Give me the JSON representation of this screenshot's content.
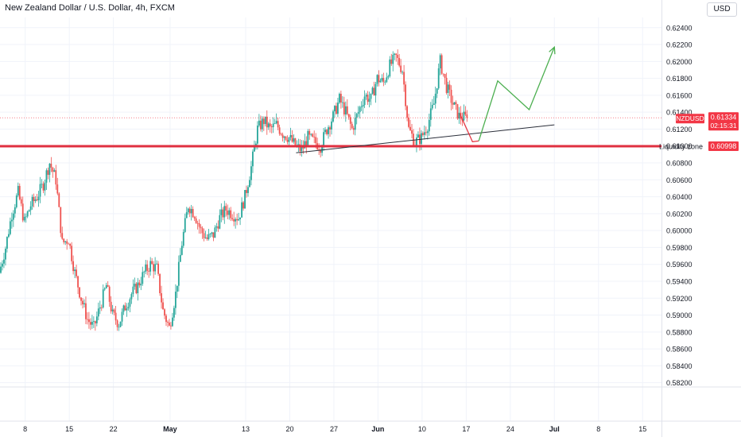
{
  "header": {
    "title": "New Zealand Dollar / U.S. Dollar, 4h, FXCM",
    "currency_label": "USD"
  },
  "colors": {
    "up": "#26a69a",
    "down": "#ef5350",
    "zone": "#e03040",
    "price_label_bg": "#f23645",
    "projection_green": "#4caf50",
    "projection_red": "#e53945",
    "trendline": "#2a2e39",
    "grid": "#f0f3fa",
    "axis_text": "#131722"
  },
  "chart_data": {
    "type": "candlestick",
    "symbol": "NZDUSD",
    "timeframe": "4h",
    "ylim": [
      0.5815,
      0.6252
    ],
    "y_ticks": [
      0.624,
      0.622,
      0.62,
      0.618,
      0.616,
      0.614,
      0.612,
      0.61,
      0.608,
      0.606,
      0.604,
      0.602,
      0.6,
      0.598,
      0.596,
      0.594,
      0.592,
      0.59,
      0.588,
      0.586,
      0.584,
      0.582
    ],
    "y_tick_labels": [
      "0.62400",
      "0.62200",
      "0.62000",
      "0.61800",
      "0.61600",
      "0.61400",
      "0.61200",
      "0.61000",
      "0.60800",
      "0.60600",
      "0.60400",
      "0.60200",
      "0.60000",
      "0.59800",
      "0.59600",
      "0.59400",
      "0.59200",
      "0.59000",
      "0.58800",
      "0.58600",
      "0.58400",
      "0.58200"
    ],
    "x_range": [
      "2024-04-04",
      "2024-07-18"
    ],
    "x_ticks": [
      {
        "date": "2024-04-08",
        "label": "8"
      },
      {
        "date": "2024-04-15",
        "label": "15"
      },
      {
        "date": "2024-04-22",
        "label": "22"
      },
      {
        "date": "2024-05-01",
        "label": "May"
      },
      {
        "date": "2024-05-13",
        "label": "13"
      },
      {
        "date": "2024-05-20",
        "label": "20"
      },
      {
        "date": "2024-05-27",
        "label": "27"
      },
      {
        "date": "2024-06-03",
        "label": "Jun"
      },
      {
        "date": "2024-06-10",
        "label": "10"
      },
      {
        "date": "2024-06-17",
        "label": "17"
      },
      {
        "date": "2024-06-24",
        "label": "24"
      },
      {
        "date": "2024-07-01",
        "label": "Jul"
      },
      {
        "date": "2024-07-08",
        "label": "8"
      },
      {
        "date": "2024-07-15",
        "label": "15"
      }
    ],
    "path": [
      [
        "2024-04-04",
        0.595
      ],
      [
        "2024-04-05",
        0.598
      ],
      [
        "2024-04-06",
        0.602
      ],
      [
        "2024-04-07",
        0.6045
      ],
      [
        "2024-04-08",
        0.601
      ],
      [
        "2024-04-09",
        0.603
      ],
      [
        "2024-04-10",
        0.604
      ],
      [
        "2024-04-11",
        0.6055
      ],
      [
        "2024-04-12",
        0.608
      ],
      [
        "2024-04-13",
        0.606
      ],
      [
        "2024-04-14",
        0.5985
      ],
      [
        "2024-04-15",
        0.599
      ],
      [
        "2024-04-16",
        0.595
      ],
      [
        "2024-04-17",
        0.592
      ],
      [
        "2024-04-18",
        0.5895
      ],
      [
        "2024-04-19",
        0.5885
      ],
      [
        "2024-04-20",
        0.591
      ],
      [
        "2024-04-21",
        0.5935
      ],
      [
        "2024-04-22",
        0.59
      ],
      [
        "2024-04-23",
        0.589
      ],
      [
        "2024-04-24",
        0.591
      ],
      [
        "2024-04-25",
        0.5925
      ],
      [
        "2024-04-26",
        0.5935
      ],
      [
        "2024-04-27",
        0.595
      ],
      [
        "2024-04-28",
        0.596
      ],
      [
        "2024-04-29",
        0.5955
      ],
      [
        "2024-04-30",
        0.5905
      ],
      [
        "2024-05-01",
        0.5885
      ],
      [
        "2024-05-02",
        0.5925
      ],
      [
        "2024-05-03",
        0.5985
      ],
      [
        "2024-05-04",
        0.603
      ],
      [
        "2024-05-05",
        0.602
      ],
      [
        "2024-05-06",
        0.6
      ],
      [
        "2024-05-07",
        0.599
      ],
      [
        "2024-05-08",
        0.5995
      ],
      [
        "2024-05-09",
        0.6015
      ],
      [
        "2024-05-10",
        0.6025
      ],
      [
        "2024-05-11",
        0.602
      ],
      [
        "2024-05-12",
        0.6015
      ],
      [
        "2024-05-13",
        0.604
      ],
      [
        "2024-05-14",
        0.6075
      ],
      [
        "2024-05-15",
        0.612
      ],
      [
        "2024-05-16",
        0.613
      ],
      [
        "2024-05-17",
        0.612
      ],
      [
        "2024-05-18",
        0.6125
      ],
      [
        "2024-05-19",
        0.6115
      ],
      [
        "2024-05-20",
        0.611
      ],
      [
        "2024-05-21",
        0.61
      ],
      [
        "2024-05-22",
        0.6095
      ],
      [
        "2024-05-23",
        0.611
      ],
      [
        "2024-05-24",
        0.6105
      ],
      [
        "2024-05-25",
        0.61
      ],
      [
        "2024-05-26",
        0.612
      ],
      [
        "2024-05-27",
        0.6135
      ],
      [
        "2024-05-28",
        0.6155
      ],
      [
        "2024-05-29",
        0.614
      ],
      [
        "2024-05-30",
        0.612
      ],
      [
        "2024-05-31",
        0.614
      ],
      [
        "2024-06-01",
        0.616
      ],
      [
        "2024-06-02",
        0.6155
      ],
      [
        "2024-06-03",
        0.618
      ],
      [
        "2024-06-04",
        0.6175
      ],
      [
        "2024-06-05",
        0.6195
      ],
      [
        "2024-06-06",
        0.6205
      ],
      [
        "2024-06-07",
        0.619
      ],
      [
        "2024-06-08",
        0.612
      ],
      [
        "2024-06-09",
        0.6105
      ],
      [
        "2024-06-10",
        0.611
      ],
      [
        "2024-06-11",
        0.6125
      ],
      [
        "2024-06-12",
        0.615
      ],
      [
        "2024-06-13",
        0.62
      ],
      [
        "2024-06-14",
        0.617
      ],
      [
        "2024-06-15",
        0.615
      ],
      [
        "2024-06-16",
        0.6135
      ],
      [
        "2024-06-17",
        0.61334
      ]
    ],
    "horizontal_levels": [
      {
        "price": 0.60998,
        "label": "Liquidity zone",
        "value_label": "0.60998"
      }
    ],
    "last_price": {
      "symbol": "NZDUSD",
      "price": 0.61334,
      "value_label": "0.61334",
      "countdown": "02:15:31"
    },
    "trendline": [
      [
        "2024-05-21",
        0.6092
      ],
      [
        "2024-07-01",
        0.6125
      ]
    ],
    "projection_red": [
      [
        "2024-06-16",
        0.6138
      ],
      [
        "2024-06-18",
        0.6105
      ],
      [
        "2024-06-19",
        0.6106
      ]
    ],
    "projection_green": [
      [
        "2024-06-19",
        0.6106
      ],
      [
        "2024-06-22",
        0.6177
      ],
      [
        "2024-06-27",
        0.6143
      ],
      [
        "2024-07-01",
        0.6217
      ]
    ]
  }
}
